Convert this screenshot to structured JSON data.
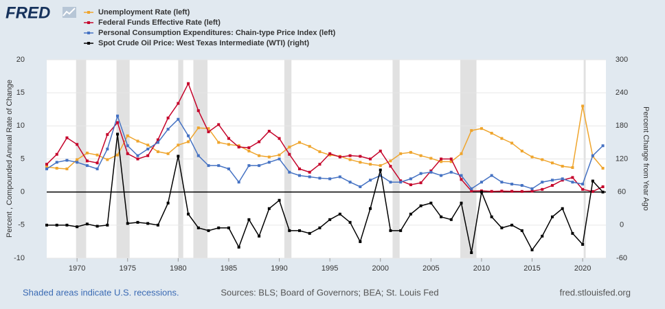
{
  "chart_data": {
    "type": "line",
    "logo": "FRED",
    "ylabel": "Percent , Compounded Annual Rate of Change",
    "y2label": "Percent Change from Year Ago",
    "note": "Shaded areas indicate U.S. recessions.",
    "source": "Sources: BLS; Board of Governors; BEA; St. Louis Fed",
    "url": "fred.stlouisfed.org",
    "xlim": [
      1967,
      2022.3
    ],
    "xticks": [
      1970,
      1975,
      1980,
      1985,
      1990,
      1995,
      2000,
      2005,
      2010,
      2015,
      2020
    ],
    "ylim": [
      -10,
      20
    ],
    "yticks": [
      -10,
      -5,
      0,
      5,
      10,
      15,
      20
    ],
    "y2lim": [
      -60,
      300
    ],
    "y2ticks": [
      -60,
      0,
      60,
      120,
      180,
      240,
      300
    ],
    "grid": true,
    "recessions": [
      [
        1969.9,
        1970.9
      ],
      [
        1973.9,
        1975.2
      ],
      [
        1980.0,
        1980.5
      ],
      [
        1981.5,
        1982.9
      ],
      [
        1990.5,
        1991.2
      ],
      [
        2001.2,
        2001.9
      ],
      [
        2007.9,
        2009.5
      ],
      [
        2020.1,
        2020.3
      ]
    ],
    "x": [
      1967,
      1968,
      1969,
      1970,
      1971,
      1972,
      1973,
      1974,
      1975,
      1976,
      1977,
      1978,
      1979,
      1980,
      1981,
      1982,
      1983,
      1984,
      1985,
      1986,
      1987,
      1988,
      1989,
      1990,
      1991,
      1992,
      1993,
      1994,
      1995,
      1996,
      1997,
      1998,
      1999,
      2000,
      2001,
      2002,
      2003,
      2004,
      2005,
      2006,
      2007,
      2008,
      2009,
      2010,
      2011,
      2012,
      2013,
      2014,
      2015,
      2016,
      2017,
      2018,
      2019,
      2020,
      2021,
      2022
    ],
    "series": [
      {
        "name": "Unemployment Rate (left)",
        "color": "#efa52d",
        "values": [
          3.8,
          3.6,
          3.5,
          4.9,
          5.9,
          5.6,
          4.9,
          5.6,
          8.5,
          7.7,
          7.1,
          6.1,
          5.8,
          7.1,
          7.6,
          9.7,
          9.6,
          7.5,
          7.2,
          7.0,
          6.2,
          5.5,
          5.3,
          5.6,
          6.8,
          7.5,
          6.9,
          6.1,
          5.6,
          5.4,
          4.9,
          4.5,
          4.2,
          4.0,
          4.7,
          5.8,
          6.0,
          5.5,
          5.1,
          4.6,
          4.6,
          5.8,
          9.3,
          9.6,
          8.9,
          8.1,
          7.4,
          6.2,
          5.3,
          4.9,
          4.4,
          3.9,
          3.7,
          13.0,
          5.4,
          3.6
        ]
      },
      {
        "name": "Federal Funds Effective Rate (left)",
        "color": "#c5042b",
        "values": [
          4.2,
          5.7,
          8.2,
          7.2,
          4.7,
          4.4,
          8.7,
          10.5,
          5.8,
          5.0,
          5.5,
          7.9,
          11.2,
          13.4,
          16.4,
          12.3,
          9.1,
          10.2,
          8.1,
          6.8,
          6.7,
          7.6,
          9.2,
          8.1,
          5.7,
          3.5,
          3.0,
          4.2,
          5.8,
          5.3,
          5.5,
          5.4,
          5.0,
          6.2,
          3.9,
          1.7,
          1.1,
          1.4,
          3.2,
          5.0,
          5.0,
          1.9,
          0.16,
          0.18,
          0.1,
          0.14,
          0.11,
          0.09,
          0.13,
          0.4,
          1.0,
          1.8,
          2.2,
          0.4,
          0.08,
          0.8
        ]
      },
      {
        "name": "Personal Consumption Expenditures: Chain-type Price Index (left)",
        "color": "#4572c3",
        "values": [
          3.5,
          4.5,
          4.8,
          4.5,
          4.0,
          3.5,
          6.5,
          11.5,
          7.0,
          5.5,
          6.5,
          7.5,
          9.5,
          11.0,
          8.5,
          5.5,
          4.0,
          4.0,
          3.5,
          1.5,
          4.0,
          4.0,
          4.5,
          5.0,
          3.0,
          2.5,
          2.3,
          2.1,
          2.0,
          2.3,
          1.5,
          0.8,
          1.8,
          2.5,
          1.5,
          1.5,
          2.0,
          2.8,
          3.0,
          2.5,
          3.0,
          2.5,
          0.5,
          1.5,
          2.5,
          1.5,
          1.2,
          1.0,
          0.5,
          1.5,
          1.8,
          2.0,
          1.5,
          1.2,
          5.5,
          7.0
        ]
      },
      {
        "name": "Spot Crude Oil Price: West Texas Intermediate (WTI) (right)",
        "color": "#000000",
        "axis": "y2",
        "values": [
          0,
          0,
          0,
          -3,
          2,
          -2,
          0,
          165,
          3,
          5,
          3,
          0,
          40,
          125,
          20,
          -5,
          -10,
          -5,
          -5,
          -40,
          10,
          -20,
          30,
          45,
          -10,
          -10,
          -15,
          -5,
          10,
          20,
          5,
          -30,
          30,
          100,
          -10,
          -10,
          20,
          35,
          40,
          15,
          10,
          40,
          -50,
          60,
          15,
          -5,
          0,
          -10,
          -45,
          -20,
          15,
          30,
          -15,
          -35,
          80,
          60
        ]
      }
    ]
  }
}
